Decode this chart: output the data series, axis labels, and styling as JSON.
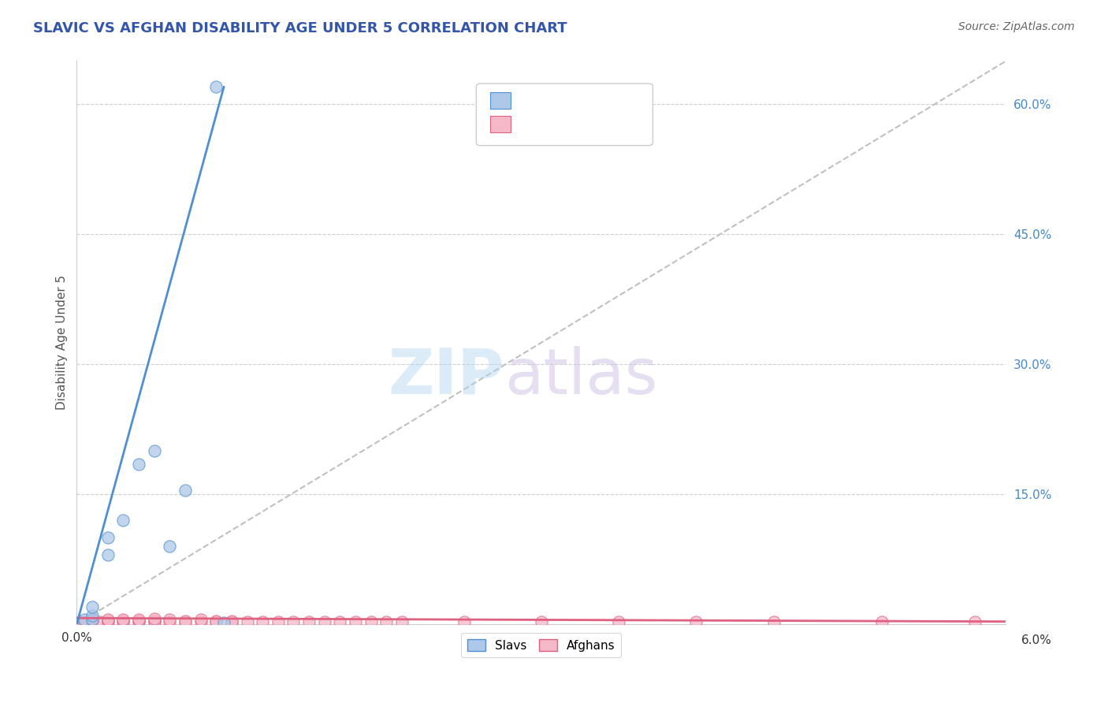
{
  "title": "SLAVIC VS AFGHAN DISABILITY AGE UNDER 5 CORRELATION CHART",
  "source": "Source: ZipAtlas.com",
  "ylabel": "Disability Age Under 5",
  "xmin": 0.0,
  "xmax": 0.06,
  "ymin": 0.0,
  "ymax": 0.65,
  "slavs_color": "#adc8e8",
  "afghans_color": "#f5b8c8",
  "slavs_line_color": "#5090d0",
  "afghans_line_color": "#e06080",
  "diagonal_color": "#c0c0c0",
  "title_color": "#3355aa",
  "source_color": "#666666",
  "legend_text_color": "#4488cc",
  "slavs_x": [
    0.0005,
    0.001,
    0.001,
    0.001,
    0.002,
    0.002,
    0.003,
    0.004,
    0.005,
    0.006,
    0.007,
    0.009,
    0.0095
  ],
  "slavs_y": [
    0.005,
    0.005,
    0.01,
    0.02,
    0.08,
    0.1,
    0.12,
    0.185,
    0.2,
    0.09,
    0.155,
    0.62,
    0.002
  ],
  "afghans_x": [
    0.0002,
    0.0005,
    0.001,
    0.001,
    0.001,
    0.001,
    0.0015,
    0.002,
    0.002,
    0.002,
    0.003,
    0.003,
    0.003,
    0.004,
    0.004,
    0.004,
    0.005,
    0.005,
    0.005,
    0.006,
    0.006,
    0.007,
    0.007,
    0.008,
    0.008,
    0.009,
    0.009,
    0.01,
    0.01,
    0.011,
    0.012,
    0.013,
    0.014,
    0.015,
    0.016,
    0.017,
    0.018,
    0.019,
    0.02,
    0.021,
    0.025,
    0.03,
    0.035,
    0.04,
    0.045,
    0.052,
    0.058
  ],
  "afghans_y": [
    0.003,
    0.003,
    0.003,
    0.004,
    0.005,
    0.006,
    0.003,
    0.003,
    0.004,
    0.005,
    0.003,
    0.004,
    0.005,
    0.003,
    0.004,
    0.005,
    0.003,
    0.004,
    0.006,
    0.003,
    0.005,
    0.003,
    0.004,
    0.003,
    0.005,
    0.003,
    0.004,
    0.003,
    0.004,
    0.003,
    0.003,
    0.003,
    0.003,
    0.003,
    0.003,
    0.003,
    0.003,
    0.003,
    0.003,
    0.003,
    0.003,
    0.003,
    0.003,
    0.003,
    0.003,
    0.003,
    0.003
  ],
  "slavs_trendline_x": [
    0.0,
    0.0095
  ],
  "slavs_trendline_y": [
    0.0,
    0.62
  ],
  "afghans_trendline_x": [
    0.0,
    0.06
  ],
  "afghans_trendline_y": [
    0.007,
    0.003
  ],
  "right_yticks": [
    0.15,
    0.3,
    0.45,
    0.6
  ],
  "right_yticklabels": [
    "15.0%",
    "30.0%",
    "45.0%",
    "60.0%"
  ]
}
